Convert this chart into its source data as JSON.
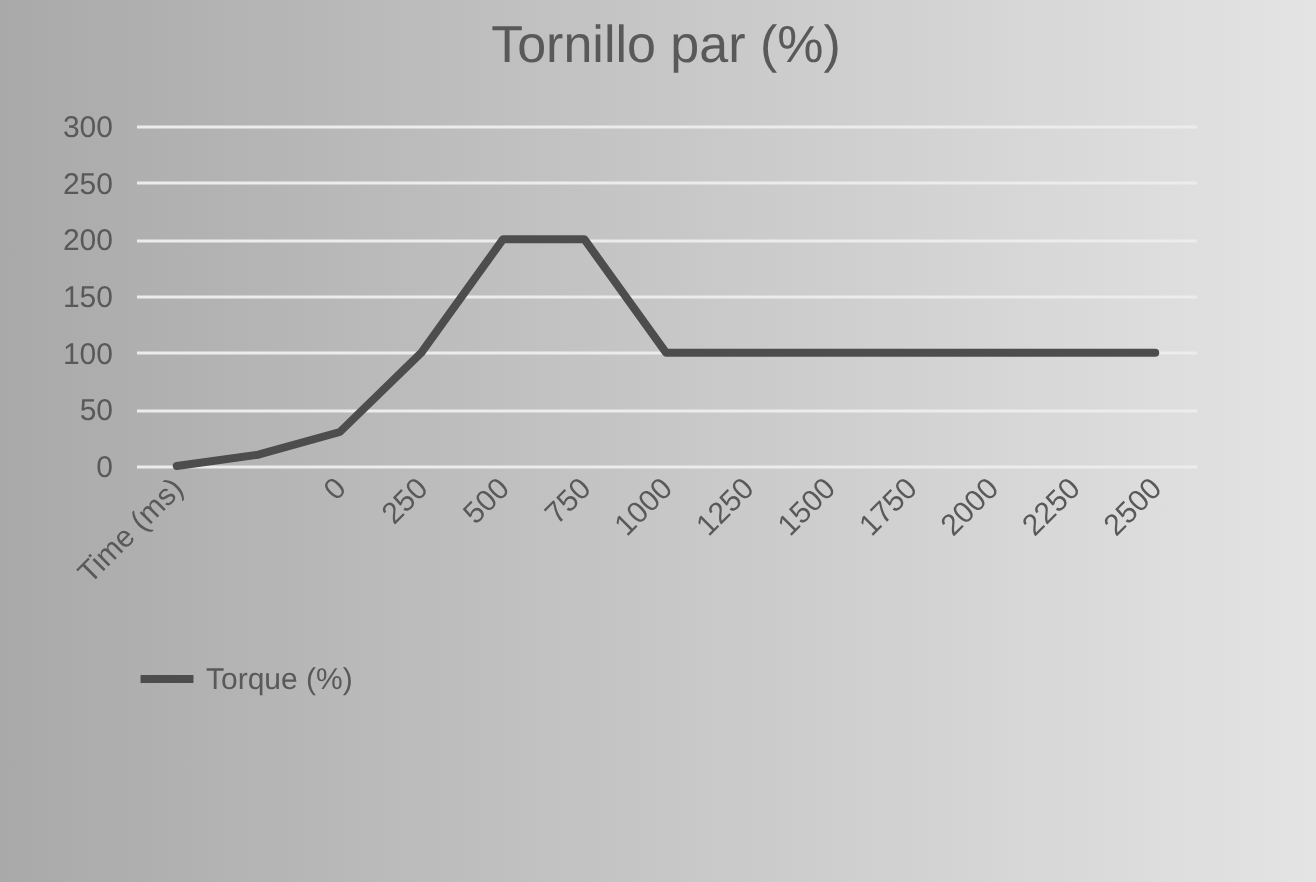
{
  "chart_data": {
    "type": "line",
    "title": "Tornillo par (%)",
    "categories": [
      "Time (ms)",
      null,
      "0",
      "250",
      "500",
      "750",
      "1000",
      "1250",
      "1500",
      "1750",
      "2000",
      "2250",
      "2500"
    ],
    "series": [
      {
        "name": "Torque (%)",
        "color": "#4d4d4d",
        "values": [
          0,
          10,
          30,
          100,
          200,
          200,
          100,
          100,
          100,
          100,
          100,
          100,
          100
        ]
      }
    ],
    "ylim": [
      0,
      300
    ],
    "yticks": [
      0,
      50,
      100,
      150,
      200,
      250,
      300
    ],
    "grid": "y",
    "legend": "bottom",
    "marker": "none",
    "line_style": "solid"
  }
}
